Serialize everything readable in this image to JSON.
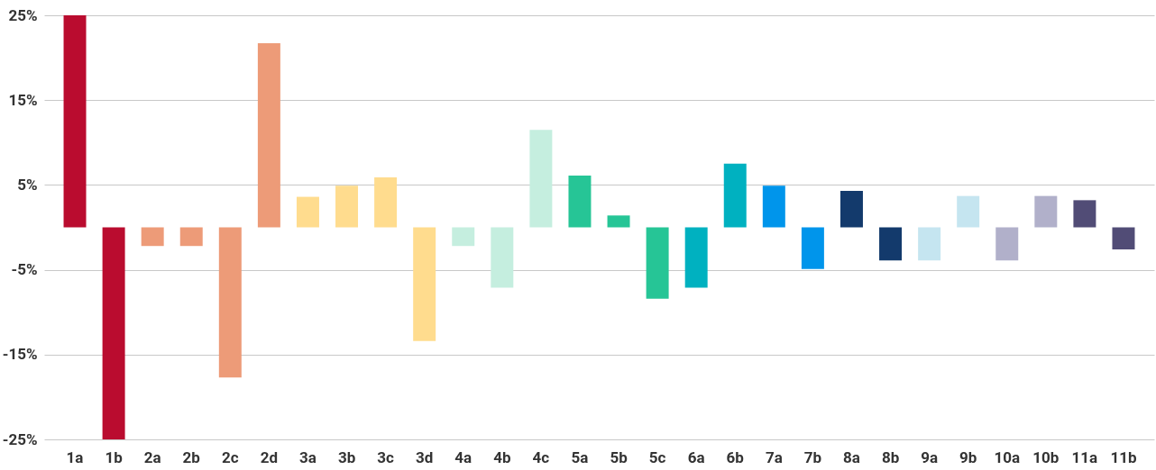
{
  "chart_data": {
    "type": "bar",
    "categories": [
      "1a",
      "1b",
      "2a",
      "2b",
      "2c",
      "2d",
      "3a",
      "3b",
      "3c",
      "3d",
      "4a",
      "4b",
      "4c",
      "5a",
      "5b",
      "5c",
      "6a",
      "6b",
      "7a",
      "7b",
      "8a",
      "8b",
      "9a",
      "9b",
      "10a",
      "10b",
      "11a",
      "11b"
    ],
    "values": [
      25,
      -25,
      -2.2,
      -2.2,
      -17.7,
      21.7,
      3.6,
      4.9,
      5.9,
      -13.4,
      -2.2,
      -7.1,
      11.5,
      6.1,
      1.4,
      -8.4,
      -7.1,
      7.5,
      4.9,
      -4.9,
      4.3,
      -3.9,
      -3.9,
      3.7,
      -3.9,
      3.7,
      3.2,
      -2.6
    ],
    "colors": [
      "#ba0c2f",
      "#ba0c2f",
      "#ed9b78",
      "#ed9b78",
      "#ed9b78",
      "#ed9b78",
      "#ffdc8e",
      "#ffdc8e",
      "#ffdc8e",
      "#ffdc8e",
      "#c5eedf",
      "#c5eedf",
      "#c5eedf",
      "#26c596",
      "#26c596",
      "#26c596",
      "#00b1c0",
      "#00b1c0",
      "#0095eb",
      "#0095eb",
      "#133a6c",
      "#133a6c",
      "#c5e5f0",
      "#c5e5f0",
      "#b1b0ca",
      "#b1b0ca",
      "#514c76",
      "#514c76"
    ],
    "ylim": [
      -25,
      25
    ],
    "yticks": [
      {
        "value": 25,
        "label": "25%"
      },
      {
        "value": 15,
        "label": "15%"
      },
      {
        "value": 5,
        "label": "5%"
      },
      {
        "value": -5,
        "label": "-5%"
      },
      {
        "value": -15,
        "label": "-15%"
      },
      {
        "value": -25,
        "label": "-25%"
      }
    ],
    "grid": "y"
  }
}
